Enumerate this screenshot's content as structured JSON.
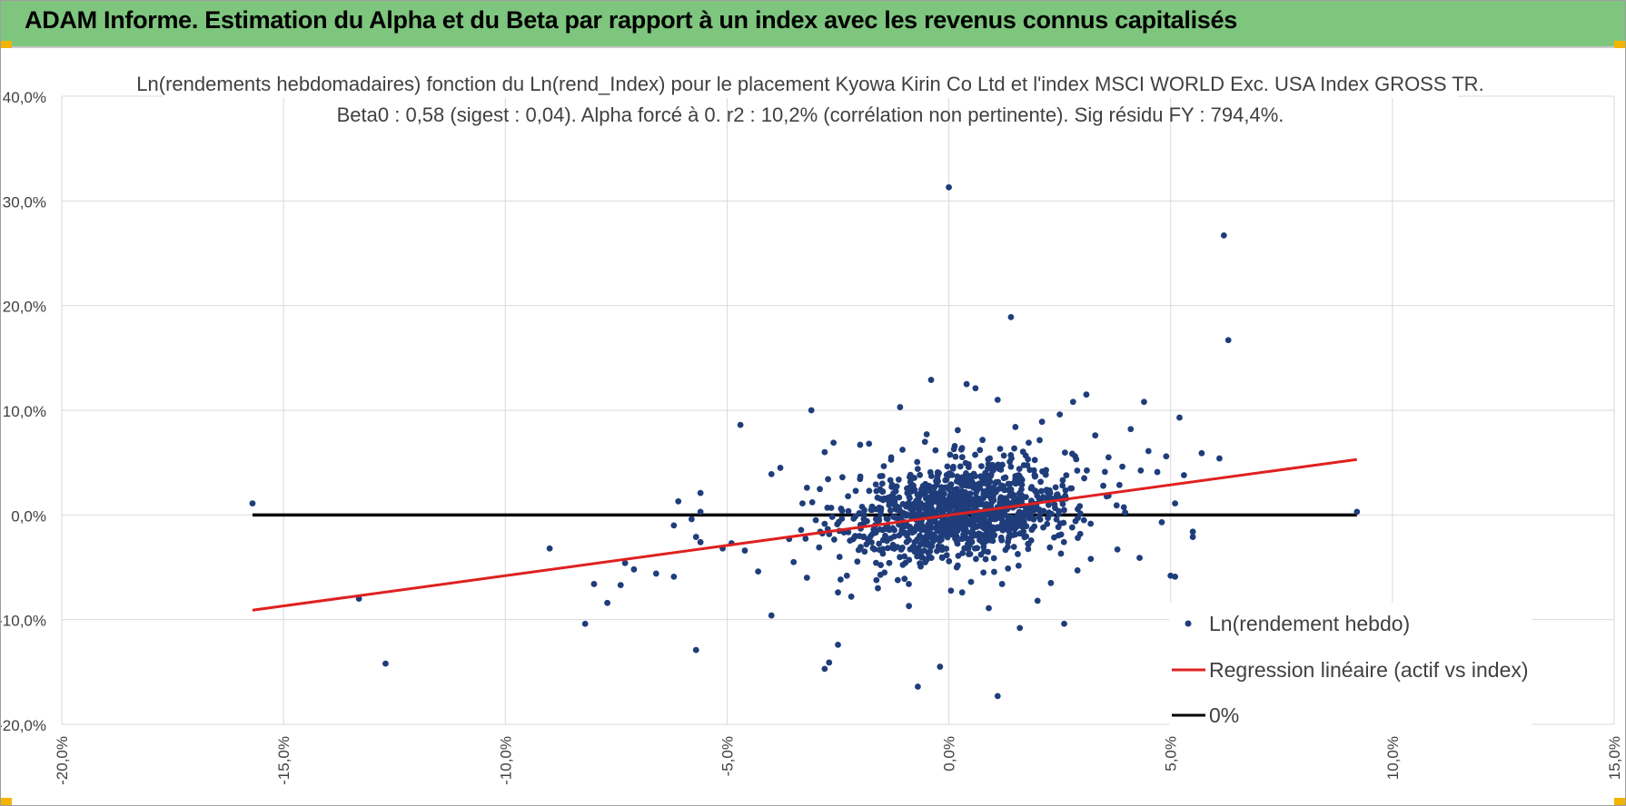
{
  "header": {
    "title": "ADAM Informe. Estimation du Alpha et du Beta par rapport à un index avec les revenus connus capitalisés"
  },
  "colors": {
    "banner": "#7ec57e",
    "points": "#1f3d7a",
    "regression": "#e02020",
    "zero_line": "#000000",
    "grid": "#d9d9d9"
  },
  "chart_data": {
    "type": "scatter",
    "title": "Ln(rendements hebdomadaires) fonction du Ln(rend_Index) pour le placement Kyowa Kirin Co Ltd et l'index MSCI WORLD Exc. USA Index GROSS TR.",
    "subtitle": "Beta0 : 0,58 (sigest : 0,04).  Alpha forcé à 0. r2 : 10,2% (corrélation non pertinente). Sig résidu FY : 794,4%.",
    "xlabel": "",
    "ylabel": "",
    "xlim": [
      -20,
      15
    ],
    "ylim": [
      -20,
      40
    ],
    "x_ticks": [
      "-20,0%",
      "-15,0%",
      "-10,0%",
      "-5,0%",
      "0,0%",
      "5,0%",
      "10,0%",
      "15,0%"
    ],
    "y_ticks": [
      "-20,0%",
      "-10,0%",
      "0,0%",
      "10,0%",
      "20,0%",
      "30,0%",
      "40,0%"
    ],
    "grid": true,
    "legend_position": "bottom-right",
    "series": [
      {
        "name": "Ln(rendement hebdo)",
        "kind": "scatter",
        "points": [
          [
            -15.7,
            1.1
          ],
          [
            -13.3,
            -8.0
          ],
          [
            -12.7,
            -14.2
          ],
          [
            -9.0,
            -3.2
          ],
          [
            -8.2,
            -10.4
          ],
          [
            -8.0,
            -6.6
          ],
          [
            -7.7,
            -8.4
          ],
          [
            -7.4,
            -6.7
          ],
          [
            -7.3,
            -4.6
          ],
          [
            -7.1,
            -5.2
          ],
          [
            -6.6,
            -5.6
          ],
          [
            -6.2,
            -5.9
          ],
          [
            -6.2,
            -1.0
          ],
          [
            -6.1,
            1.3
          ],
          [
            -5.8,
            -0.4
          ],
          [
            -5.7,
            -2.1
          ],
          [
            -5.6,
            2.1
          ],
          [
            -5.6,
            -2.6
          ],
          [
            -5.7,
            -12.9
          ],
          [
            -5.6,
            0.3
          ],
          [
            -5.1,
            -3.2
          ],
          [
            -4.9,
            -2.7
          ],
          [
            -4.7,
            8.6
          ],
          [
            -4.6,
            -3.4
          ],
          [
            -4.3,
            -5.4
          ],
          [
            -4.0,
            -9.6
          ],
          [
            -4.0,
            3.9
          ],
          [
            -3.8,
            4.5
          ],
          [
            -3.6,
            -2.3
          ],
          [
            -3.5,
            -4.5
          ],
          [
            -3.3,
            1.1
          ],
          [
            -3.2,
            2.6
          ],
          [
            -3.2,
            -6.0
          ],
          [
            -3.1,
            10.0
          ],
          [
            -3.0,
            -0.5
          ],
          [
            -2.9,
            -1.6
          ],
          [
            -2.8,
            6.0
          ],
          [
            -2.8,
            -14.7
          ],
          [
            -2.7,
            -14.1
          ],
          [
            -2.6,
            6.9
          ],
          [
            -2.5,
            -12.4
          ],
          [
            -2.5,
            -7.4
          ],
          [
            -2.4,
            3.6
          ],
          [
            -2.3,
            -5.8
          ],
          [
            -2.2,
            -7.8
          ],
          [
            -2.1,
            2.3
          ],
          [
            -2.0,
            6.7
          ],
          [
            -1.9,
            -3.5
          ],
          [
            -1.8,
            6.8
          ],
          [
            -1.6,
            -7.0
          ],
          [
            -1.5,
            3.0
          ],
          [
            -1.3,
            5.5
          ],
          [
            -1.1,
            10.3
          ],
          [
            -1.0,
            -6.1
          ],
          [
            -0.9,
            -8.7
          ],
          [
            -0.8,
            2.8
          ],
          [
            -0.7,
            -16.4
          ],
          [
            -0.5,
            7.7
          ],
          [
            -0.4,
            12.9
          ],
          [
            -0.2,
            -14.5
          ],
          [
            0.0,
            31.3
          ],
          [
            0.1,
            4.6
          ],
          [
            0.2,
            8.1
          ],
          [
            0.3,
            -7.4
          ],
          [
            0.4,
            12.5
          ],
          [
            0.5,
            -6.4
          ],
          [
            0.6,
            12.1
          ],
          [
            0.7,
            6.2
          ],
          [
            0.9,
            -8.9
          ],
          [
            1.1,
            11.0
          ],
          [
            1.1,
            -17.3
          ],
          [
            1.2,
            -6.6
          ],
          [
            1.4,
            18.9
          ],
          [
            1.5,
            8.4
          ],
          [
            1.6,
            -10.8
          ],
          [
            1.8,
            6.9
          ],
          [
            2.0,
            -8.2
          ],
          [
            2.1,
            8.9
          ],
          [
            2.3,
            -6.5
          ],
          [
            2.5,
            9.6
          ],
          [
            2.6,
            -10.4
          ],
          [
            2.8,
            10.8
          ],
          [
            2.9,
            -5.3
          ],
          [
            3.1,
            11.5
          ],
          [
            3.2,
            -4.2
          ],
          [
            3.3,
            7.6
          ],
          [
            3.6,
            5.5
          ],
          [
            3.8,
            -3.3
          ],
          [
            4.1,
            8.2
          ],
          [
            4.3,
            -4.1
          ],
          [
            4.4,
            10.8
          ],
          [
            4.5,
            6.1
          ],
          [
            4.7,
            4.1
          ],
          [
            4.8,
            -0.7
          ],
          [
            4.9,
            5.6
          ],
          [
            5.0,
            -5.8
          ],
          [
            5.1,
            -5.9
          ],
          [
            5.1,
            1.1
          ],
          [
            5.2,
            9.3
          ],
          [
            5.3,
            3.8
          ],
          [
            5.5,
            -2.1
          ],
          [
            5.5,
            -1.6
          ],
          [
            5.7,
            5.9
          ],
          [
            6.1,
            5.4
          ],
          [
            6.2,
            26.7
          ],
          [
            6.3,
            16.7
          ],
          [
            9.2,
            0.3
          ]
        ],
        "dense_cluster": {
          "count": 1150,
          "x_mean": 0.3,
          "x_sd": 1.25,
          "y_mean": 0.3,
          "y_sd": 2.3
        }
      },
      {
        "name": "Regression linéaire (actif vs index)",
        "kind": "line",
        "x": [
          -15.7,
          9.2
        ],
        "y": [
          -9.1,
          5.3
        ]
      },
      {
        "name": "0%",
        "kind": "line",
        "x": [
          -15.7,
          9.2
        ],
        "y": [
          0,
          0
        ]
      }
    ]
  }
}
